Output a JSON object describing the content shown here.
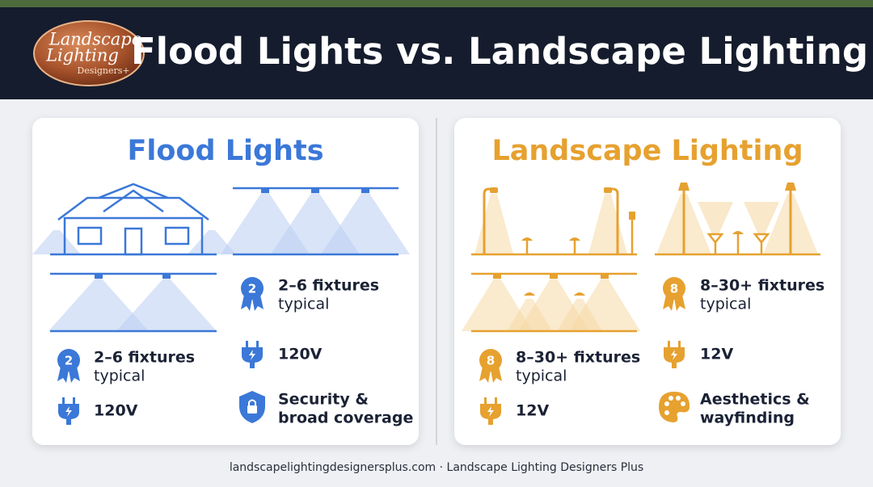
{
  "logo": {
    "lines": [
      "Landscape",
      "Lighting",
      "Designers+"
    ]
  },
  "header": {
    "title": "Flood Lights vs. Landscape Lighting"
  },
  "panels": [
    {
      "title": "Flood Lights",
      "lower_features": [
        {
          "badge": "2",
          "lines": [
            "2–6 fixtures",
            "typical"
          ]
        },
        {
          "lines": [
            "120V"
          ]
        }
      ],
      "side_features": [
        {
          "badge": "2",
          "lines": [
            "2–6 fixtures",
            "typical"
          ]
        },
        {
          "lines": [
            "120V"
          ]
        },
        {
          "lines": [
            "Security &",
            "broad coverage"
          ]
        }
      ]
    },
    {
      "title": "Landscape Lighting",
      "lower_features": [
        {
          "badge": "8",
          "lines": [
            "8–30+ fixtures",
            "typical"
          ]
        },
        {
          "lines": [
            "12V"
          ]
        }
      ],
      "side_features": [
        {
          "badge": "8",
          "lines": [
            "8–30+ fixtures",
            "typical"
          ]
        },
        {
          "lines": [
            "12V"
          ]
        },
        {
          "lines": [
            "Aesthetics &",
            "wayfinding"
          ]
        }
      ]
    }
  ],
  "footer": "landscapelightingdesignersplus.com · Landscape Lighting Designers Plus"
}
